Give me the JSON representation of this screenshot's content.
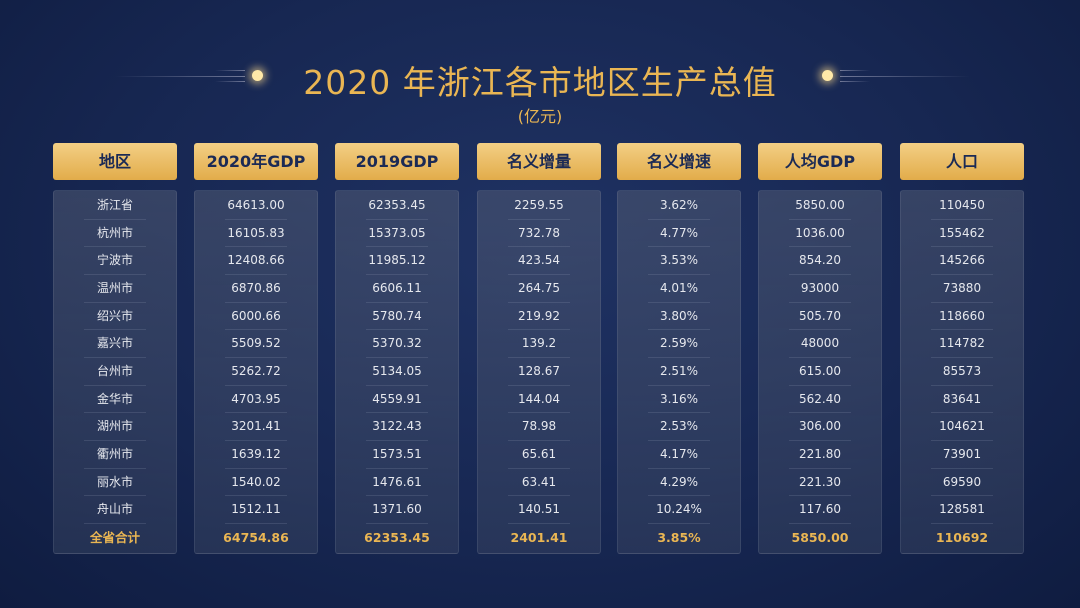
{
  "title": "2020 年浙江各市地区生产总值",
  "subtitle": "(亿元)",
  "colors": {
    "gold": "#eab653",
    "background": "#172752",
    "header_text": "#1b2a55"
  },
  "table": {
    "columns": [
      {
        "header": "地区",
        "values": [
          "浙江省",
          "杭州市",
          "宁波市",
          "温州市",
          "绍兴市",
          "嘉兴市",
          "台州市",
          "金华市",
          "湖州市",
          "衢州市",
          "丽水市",
          "舟山市"
        ],
        "total": "全省合计"
      },
      {
        "header": "2020年GDP",
        "values": [
          "64613.00",
          "16105.83",
          "12408.66",
          "6870.86",
          "6000.66",
          "5509.52",
          "5262.72",
          "4703.95",
          "3201.41",
          "1639.12",
          "1540.02",
          "1512.11"
        ],
        "total": "64754.86"
      },
      {
        "header": "2019GDP",
        "values": [
          "62353.45",
          "15373.05",
          "11985.12",
          "6606.11",
          "5780.74",
          "5370.32",
          "5134.05",
          "4559.91",
          "3122.43",
          "1573.51",
          "1476.61",
          "1371.60"
        ],
        "total": "62353.45"
      },
      {
        "header": "名义增量",
        "values": [
          "2259.55",
          "732.78",
          "423.54",
          "264.75",
          "219.92",
          "139.2",
          "128.67",
          "144.04",
          "78.98",
          "65.61",
          "63.41",
          "140.51"
        ],
        "total": "2401.41"
      },
      {
        "header": "名义增速",
        "values": [
          "3.62%",
          "4.77%",
          "3.53%",
          "4.01%",
          "3.80%",
          "2.59%",
          "2.51%",
          "3.16%",
          "2.53%",
          "4.17%",
          "4.29%",
          "10.24%"
        ],
        "total": "3.85%"
      },
      {
        "header": "人均GDP",
        "values": [
          "5850.00",
          "1036.00",
          "854.20",
          "93000",
          "505.70",
          "48000",
          "615.00",
          "562.40",
          "306.00",
          "221.80",
          "221.30",
          "117.60"
        ],
        "total": "5850.00"
      },
      {
        "header": "人口",
        "values": [
          "110450",
          "155462",
          "145266",
          "73880",
          "118660",
          "114782",
          "85573",
          "83641",
          "104621",
          "73901",
          "69590",
          "128581"
        ],
        "total": "110692"
      }
    ]
  }
}
